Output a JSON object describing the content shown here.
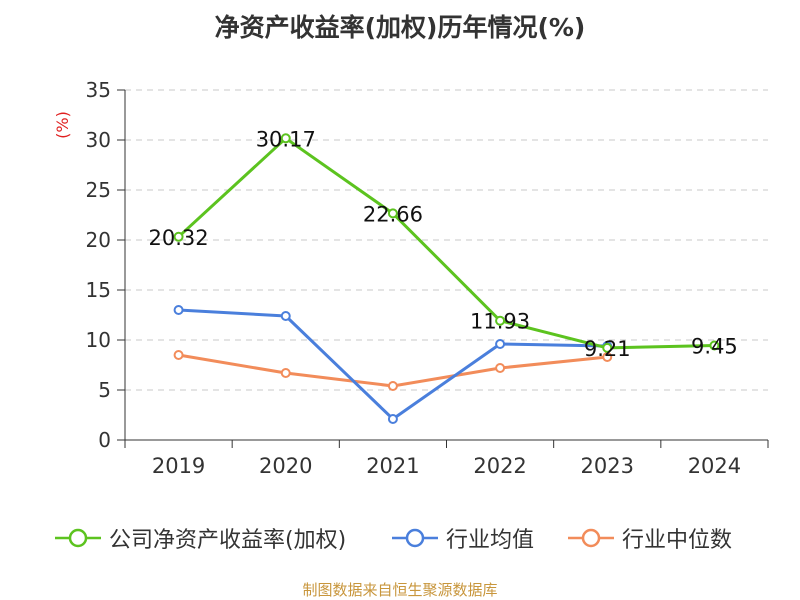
{
  "title": "净资产收益率(加权)历年情况(%)",
  "source": "制图数据来自恒生聚源数据库",
  "colors": {
    "company": "#5cc31f",
    "industry_avg": "#4a7fdc",
    "industry_median": "#f28c5a",
    "grid": "#c8c8c8",
    "axis": "#333333",
    "unit": "#e02020"
  },
  "chart_data": {
    "type": "line",
    "ylabel": "(%)",
    "ylim": [
      0,
      35
    ],
    "yticks": [
      "0",
      "5",
      "10",
      "15",
      "20",
      "25",
      "30",
      "35"
    ],
    "categories": [
      "2019",
      "2020",
      "2021",
      "2022",
      "2023",
      "2024"
    ],
    "grid": true,
    "legend_position": "bottom",
    "series": [
      {
        "name": "公司净资产收益率(加权)",
        "color": "#5cc31f",
        "values": [
          20.32,
          30.17,
          22.66,
          11.93,
          9.21,
          9.45
        ],
        "labels": [
          "20.32",
          "30.17",
          "22.66",
          "11.93",
          "9.21",
          "9.45"
        ]
      },
      {
        "name": "行业均值",
        "color": "#4a7fdc",
        "values": [
          13.0,
          12.4,
          2.1,
          9.6,
          9.4,
          null
        ]
      },
      {
        "name": "行业中位数",
        "color": "#f28c5a",
        "values": [
          8.5,
          6.7,
          5.4,
          7.2,
          8.3,
          null
        ]
      }
    ]
  }
}
